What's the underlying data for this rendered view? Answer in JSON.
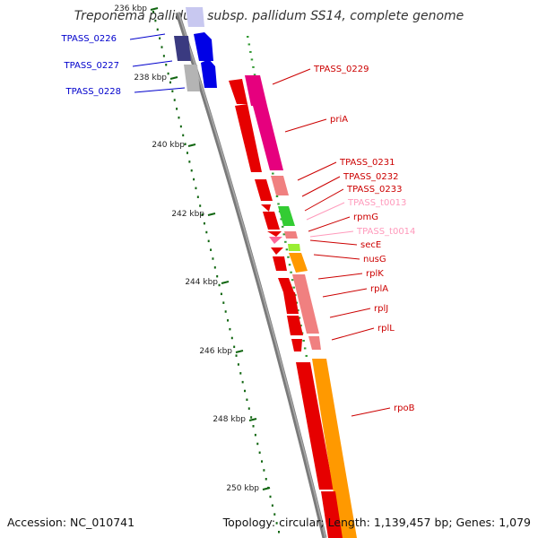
{
  "title": "Treponema pallidum subsp. pallidum SS14, complete genome",
  "footer": {
    "accession": "Accession: NC_010741",
    "stats": "Topology: circular; Length: 1,139,457 bp; Genes: 1,079"
  },
  "colors": {
    "blue": "#0000e6",
    "navy": "#3a3a80",
    "lavender": "#c8c8f0",
    "gray": "#b4b4b4",
    "red": "#e60000",
    "magenta": "#e6007e",
    "pink": "#f08080",
    "green": "#33cc33",
    "lightgreen": "#99ee33",
    "orange": "#ff9900",
    "darkgreen_tick": "#116611",
    "backbone": "#7a7a7a",
    "label_blue": "#0000cc",
    "label_red": "#cc0000",
    "label_pink": "#ff99bb"
  },
  "scale_labels": [
    "236 kbp",
    "238 kbp",
    "240 kbp",
    "242 kbp",
    "244 kbp",
    "246 kbp",
    "248 kbp",
    "250 kbp"
  ],
  "gene_labels_left": [
    "TPASS_0226",
    "TPASS_0227",
    "TPASS_0228"
  ],
  "gene_labels_right": [
    {
      "text": "TPASS_0229",
      "color": "red"
    },
    {
      "text": "priA",
      "color": "red"
    },
    {
      "text": "TPASS_0231",
      "color": "red"
    },
    {
      "text": "TPASS_0232",
      "color": "red"
    },
    {
      "text": "TPASS_0233",
      "color": "red"
    },
    {
      "text": "TPASS_t0013",
      "color": "pink"
    },
    {
      "text": "rpmG",
      "color": "red"
    },
    {
      "text": "TPASS_t0014",
      "color": "pink"
    },
    {
      "text": "secE",
      "color": "red"
    },
    {
      "text": "nusG",
      "color": "red"
    },
    {
      "text": "rplK",
      "color": "red"
    },
    {
      "text": "rplA",
      "color": "red"
    },
    {
      "text": "rplJ",
      "color": "red"
    },
    {
      "text": "rplL",
      "color": "red"
    },
    {
      "text": "rpoB",
      "color": "red"
    }
  ]
}
